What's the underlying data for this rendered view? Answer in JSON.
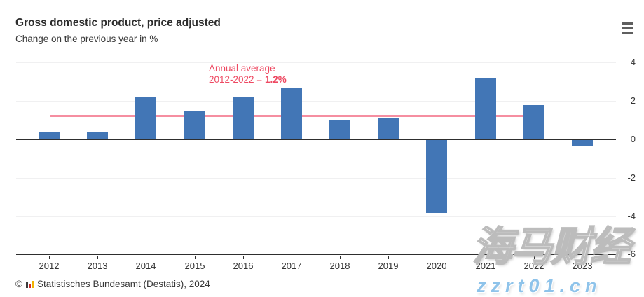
{
  "header": {
    "title": "Gross domestic product, price adjusted",
    "subtitle": "Change on the previous year in %"
  },
  "menu": {
    "icon": "hamburger-menu-icon"
  },
  "chart_data": {
    "type": "bar",
    "title": "Gross domestic product, price adjusted",
    "subtitle": "Change on the previous year in %",
    "categories": [
      "2012",
      "2013",
      "2014",
      "2015",
      "2016",
      "2017",
      "2018",
      "2019",
      "2020",
      "2021",
      "2022",
      "2023"
    ],
    "values": [
      0.4,
      0.4,
      2.2,
      1.5,
      2.2,
      2.7,
      1.0,
      1.1,
      -3.8,
      3.2,
      1.8,
      -0.3
    ],
    "xlabel": "",
    "ylabel": "",
    "ylim": [
      -6,
      4
    ],
    "yticks": [
      4,
      2,
      0,
      -2,
      -4,
      -6
    ],
    "grid": true,
    "legend": "none",
    "bar_color": "#4276b6",
    "axis_label_side": "right",
    "average_line": {
      "value": 1.2,
      "span_categories": [
        "2012",
        "2022"
      ],
      "label_line1": "Annual average",
      "label_prefix": "2012-2022 = ",
      "value_label": "1.2%",
      "line_color": "#ee5b76",
      "text_color": "#ee4962"
    }
  },
  "footer": {
    "copyright": "©",
    "logo": "destatis-bars-icon",
    "source": "Statistisches Bundesamt (Destatis), 2024"
  },
  "watermark": {
    "cjk": "海马财经",
    "url": "zzrt01.cn"
  }
}
